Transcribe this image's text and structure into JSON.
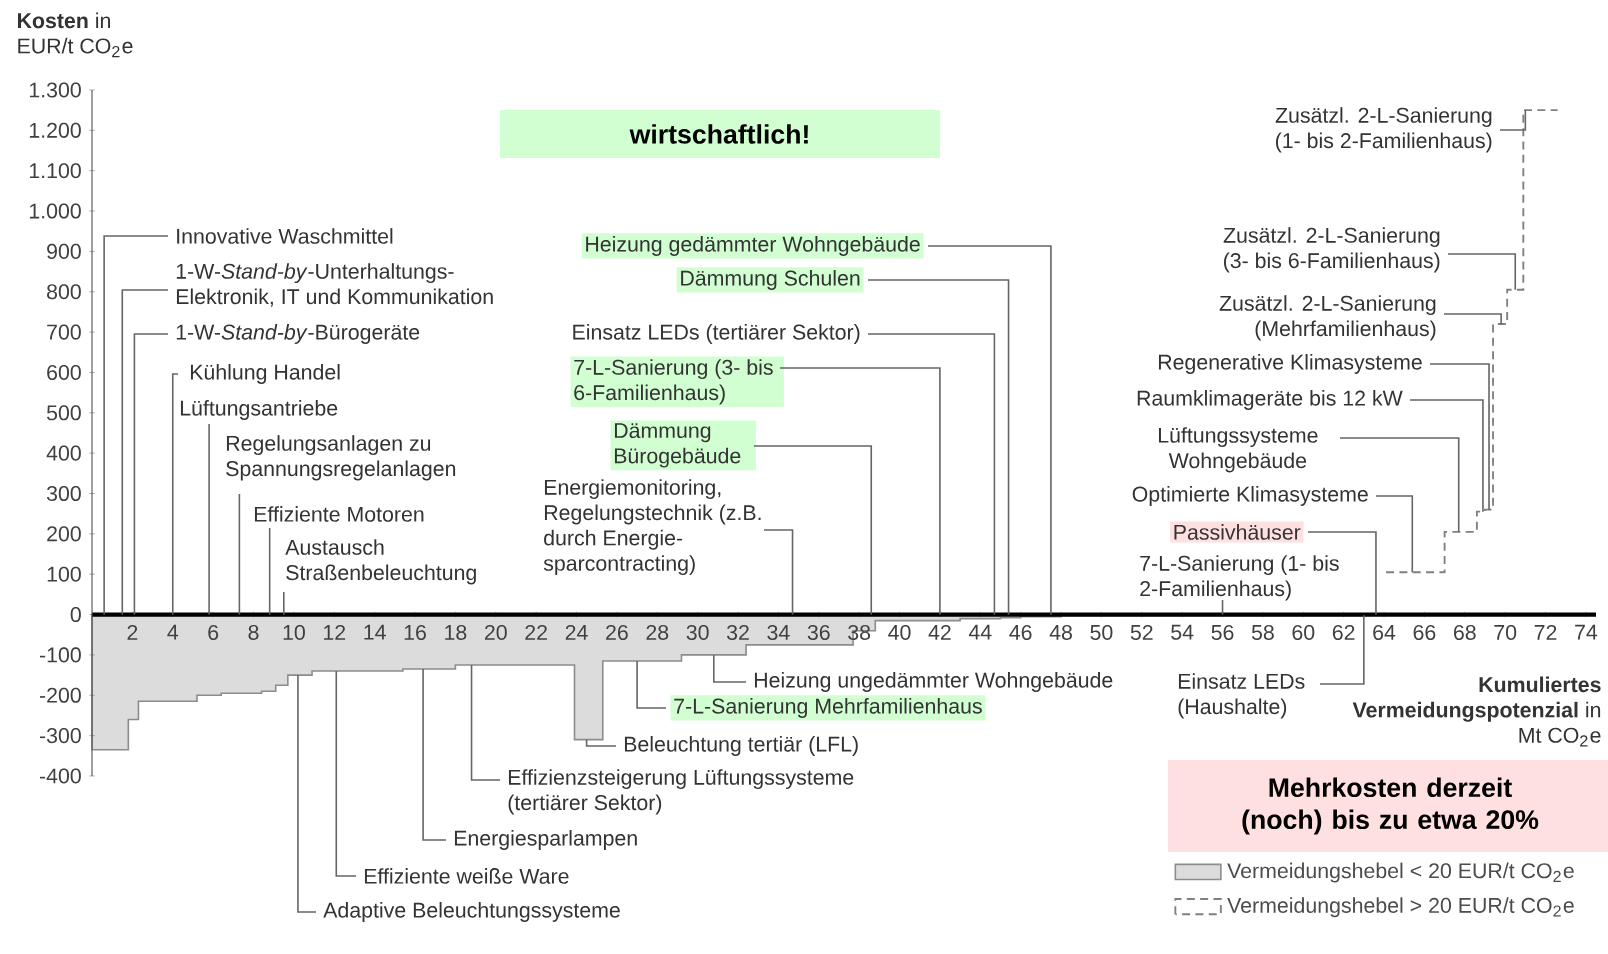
{
  "chart_data": {
    "type": "step",
    "ylabel": "**Kosten** in EUR/t CO$_{2}$e",
    "xlabel": "**Kumuliertes Vermeidungspotenzial** in Mt CO$_{2}$e",
    "xlim": [
      0,
      74.5
    ],
    "xticks": [
      2,
      4,
      6,
      8,
      10,
      12,
      14,
      16,
      18,
      20,
      22,
      24,
      26,
      28,
      30,
      32,
      34,
      36,
      38,
      40,
      42,
      44,
      46,
      48,
      50,
      52,
      54,
      56,
      58,
      60,
      62,
      64,
      66,
      68,
      70,
      72,
      74
    ],
    "ylim": [
      -400,
      1300
    ],
    "yticks": [
      -400,
      -300,
      -200,
      -100,
      0,
      100,
      200,
      300,
      400,
      500,
      600,
      700,
      800,
      900,
      {
        "value": 1000,
        "label": "1.000"
      },
      {
        "value": 1100,
        "label": "1.100"
      },
      {
        "value": 1200,
        "label": "1.200"
      },
      {
        "value": 1300,
        "label": "1.300"
      }
    ],
    "legend": "bottom right",
    "series": [
      {
        "name": "Vermeidungshebel < 20 EUR/t CO$_{2}$e",
        "type": "area",
        "color": "#dcdcdc",
        "line_style": "solid",
        "x": [
          0,
          1.1,
          1.8,
          2.3,
          5.2,
          6.4,
          8.4,
          9.1,
          9.7,
          10.9,
          15.4,
          18.0,
          23.9,
          25.3,
          29.2,
          32.4,
          37.7,
          38.8,
          43,
          45,
          46,
          48,
          63.3
        ],
        "values": [
          -335,
          -335,
          -260,
          -215,
          -200,
          -195,
          -190,
          -175,
          -150,
          -140,
          -135,
          -125,
          -310,
          -115,
          -100,
          -75,
          -40,
          -15,
          -10,
          -8,
          -5,
          -2,
          -2
        ]
      },
      {
        "name": "Vermeidungshebel > 20 EUR/t CO$_{2}$e",
        "color": "#808080",
        "line_style": "dashed",
        "x": [
          64.1,
          67.0,
          68.6,
          69.0,
          69.4,
          70.1,
          70.9,
          72.6
        ],
        "values": [
          105,
          205,
          255,
          260,
          720,
          805,
          1250,
          1250
        ]
      }
    ],
    "annotations": [
      {
        "text": "Innovative Waschmittel",
        "x": 0.6,
        "y": 0
      },
      {
        "text": "1-W-*Stand-by*-Unterhaltungs-Elektronik, IT und Kommunikation",
        "x": 1.5,
        "y": 0
      },
      {
        "text": "1-W-*Stand-by*-Bürogeräte",
        "x": 2.1,
        "y": 0
      },
      {
        "text": "Kühlung Handel",
        "x": 4.0,
        "y": 0
      },
      {
        "text": "Lüftungsantriebe",
        "x": 5.8,
        "y": 0
      },
      {
        "text": "Regelungsanlagen zu Spannungsregelanlagen",
        "x": 7.3,
        "y": 0
      },
      {
        "text": "Effiziente Motoren",
        "x": 8.8,
        "y": 0
      },
      {
        "text": "Austausch Straßenbeleuchtung",
        "x": 9.5,
        "y": 0
      },
      {
        "text": "Adaptive Beleuchtungssysteme",
        "x": 10.2,
        "y": -150
      },
      {
        "text": "Effiziente weiße Ware",
        "x": 12.1,
        "y": -140
      },
      {
        "text": "Energiesparlampen",
        "x": 16.4,
        "y": -135
      },
      {
        "text": "Effizienzsteigerung Lüftungssysteme (tertiärer Sektor)",
        "x": 18.8,
        "y": -125
      },
      {
        "text": "Beleuchtung tertiär (LFL)",
        "x": 24.5,
        "y": -310
      },
      {
        "text": "7-L-Sanierung Mehrfamilienhaus",
        "x": 27.0,
        "y": -115
      },
      {
        "text": "Heizung ungedämmter Wohngebäude",
        "x": 30.8,
        "y": -100
      },
      {
        "text": "Energiemonitoring, Regelungstechnik (z.B. durch Energie-sparcontracting)",
        "x": 34.7,
        "y": 0
      },
      {
        "text": "Dämmung Bürogebäude",
        "x": 38.6,
        "y": 0
      },
      {
        "text": "7-L-Sanierung (3- bis 6-Familienhaus)",
        "x": 42.0,
        "y": 0
      },
      {
        "text": "Einsatz LEDs (tertiärer Sektor)",
        "x": 44.7,
        "y": 0
      },
      {
        "text": "Dämmung Schulen",
        "x": 45.4,
        "y": 0
      },
      {
        "text": "Heizung gedämmter Wohngebäude",
        "x": 47.5,
        "y": 0
      },
      {
        "text": "7-L-Sanierung (1- bis 2-Familienhaus)",
        "x": 56.0,
        "y": 0
      },
      {
        "text": "Passivhäuser",
        "x": 63.6,
        "y": 0
      },
      {
        "text": "Optimierte Klimasysteme",
        "x": 65.4,
        "y": 105
      },
      {
        "text": "Lüftungssysteme Wohngebäude",
        "x": 67.7,
        "y": 205
      },
      {
        "text": "Raumklimageräte bis 12 kW",
        "x": 68.9,
        "y": 255
      },
      {
        "text": "Regenerative Klimasysteme",
        "x": 69.2,
        "y": 260
      },
      {
        "text": "Zusätzl. 2-L-Sanierung (Mehrfamilienhaus)",
        "x": 69.8,
        "y": 720
      },
      {
        "text": "Zusätzl. 2-L-Sanierung (3- bis 6-Familienhaus)",
        "x": 70.5,
        "y": 805
      },
      {
        "text": "Zusätzl. 2-L-Sanierung (1- bis 2-Familienhaus)",
        "x": 71.0,
        "y": 1250
      },
      {
        "text": "Einsatz LEDs (Haushalte)",
        "x": 63.0,
        "y": -2
      },
      "wirtschaftlich!",
      "Mehrkosten derzeit (noch) bis zu etwa 20%"
    ]
  }
}
